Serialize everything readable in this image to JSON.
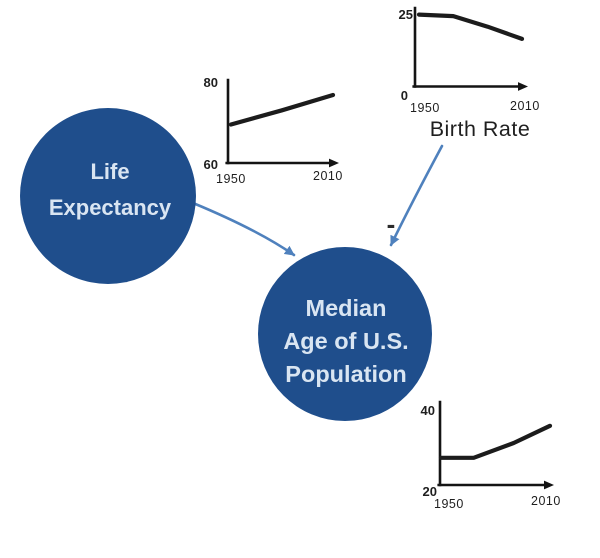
{
  "colors": {
    "node_fill": "#1f4e8c",
    "node_text": "#d9e5f2",
    "arrow": "#4f81bd",
    "chart_line": "#1c1c1c",
    "axis": "#141414",
    "tick_text": "#1f1f1f",
    "background": "#ffffff",
    "polarity_text": "#2b2b2b"
  },
  "nodes": {
    "life_expectancy": {
      "line1": "Life",
      "line2": "Expectancy"
    },
    "median_age": {
      "line1": "Median",
      "line2": "Age of U.S.",
      "line3": "Population"
    }
  },
  "edges": {
    "life_to_median": {
      "polarity": ""
    },
    "birth_to_median": {
      "polarity": "-"
    }
  },
  "labels": {
    "birth_rate": "Birth Rate"
  },
  "chart_data": [
    {
      "id": "life_expectancy_trend",
      "type": "line",
      "title": "",
      "xlabel": "",
      "ylabel": "",
      "xlim": [
        1950,
        2010
      ],
      "ylim": [
        60,
        80
      ],
      "x_ticks": [
        "1950",
        "2010"
      ],
      "y_ticks": [
        "60",
        "80"
      ],
      "legend": "none",
      "grid": false,
      "points": [
        [
          1950,
          69.5
        ],
        [
          1980,
          73.0
        ],
        [
          2010,
          76.8
        ]
      ]
    },
    {
      "id": "birth_rate_trend",
      "type": "line",
      "title": "Birth Rate",
      "xlabel": "",
      "ylabel": "",
      "xlim": [
        1950,
        2010
      ],
      "ylim": [
        0,
        25
      ],
      "x_ticks": [
        "1950",
        "2010"
      ],
      "y_ticks": [
        "0",
        "25"
      ],
      "legend": "none",
      "grid": false,
      "points": [
        [
          1950,
          23.5
        ],
        [
          1970,
          23.0
        ],
        [
          1990,
          19.5
        ],
        [
          2010,
          15.5
        ]
      ]
    },
    {
      "id": "median_age_trend",
      "type": "line",
      "title": "",
      "xlabel": "",
      "ylabel": "",
      "xlim": [
        1950,
        2010
      ],
      "ylim": [
        20,
        40
      ],
      "x_ticks": [
        "1950",
        "2010"
      ],
      "y_ticks": [
        "20",
        "40"
      ],
      "legend": "none",
      "grid": false,
      "points": [
        [
          1950,
          26.8
        ],
        [
          1968,
          26.8
        ],
        [
          1990,
          30.5
        ],
        [
          2010,
          34.8
        ]
      ]
    }
  ]
}
